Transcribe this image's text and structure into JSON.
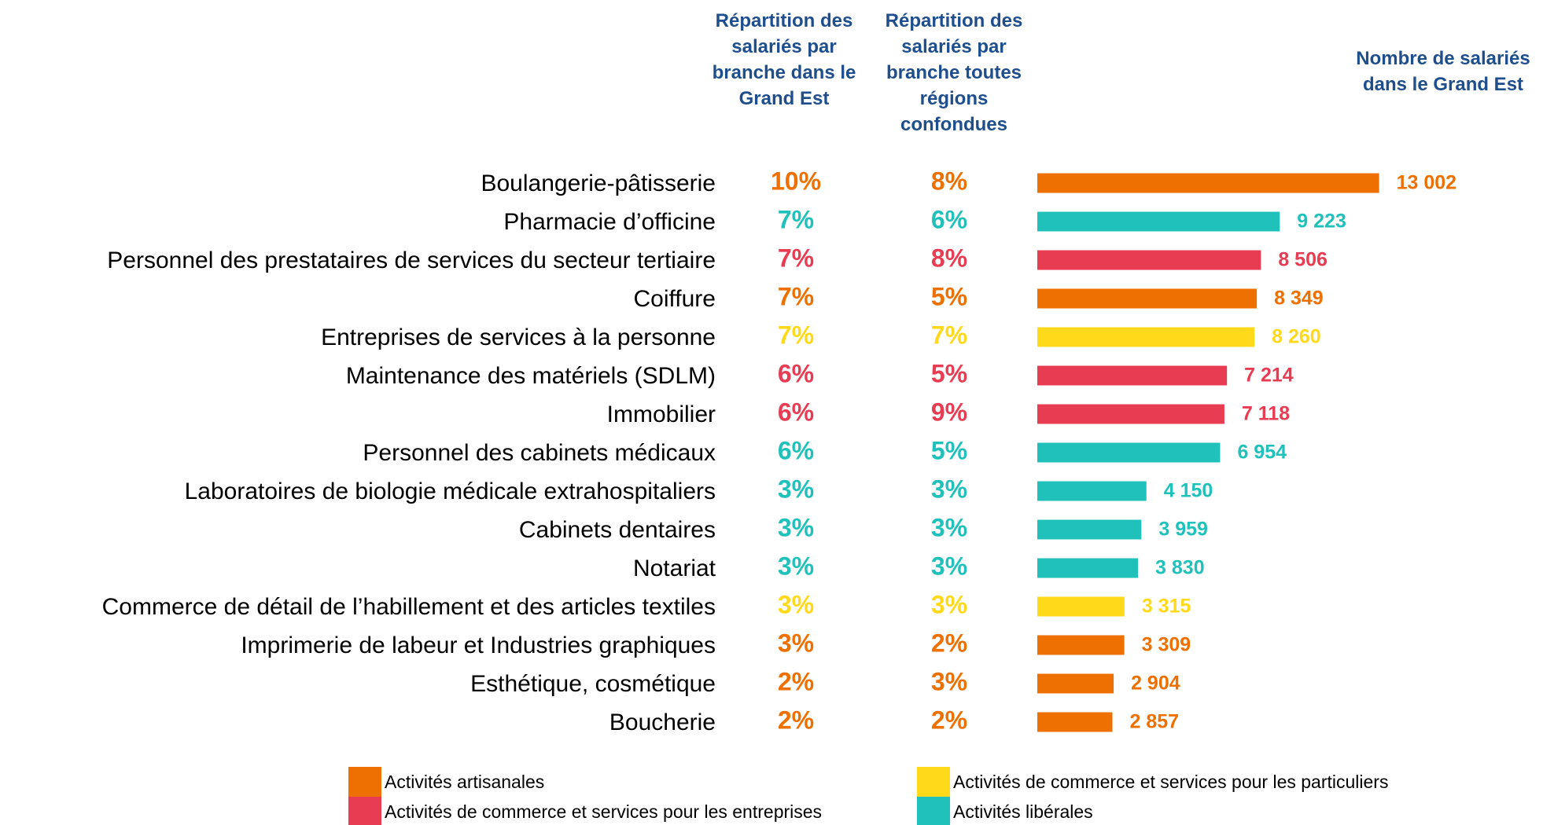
{
  "chart_data": {
    "type": "bar",
    "orientation": "horizontal",
    "columns": [
      {
        "title": "Répartition des salariés par branche dans le Grand Est",
        "values": [
          10,
          7,
          7,
          7,
          7,
          6,
          6,
          6,
          3,
          3,
          3,
          3,
          3,
          2,
          2
        ],
        "value_labels": [
          "10%",
          "7%",
          "7%",
          "7%",
          "7%",
          "6%",
          "6%",
          "6%",
          "3%",
          "3%",
          "3%",
          "3%",
          "3%",
          "2%",
          "2%"
        ]
      },
      {
        "title": "Répartition des salariés par branche toutes régions confondues",
        "values": [
          8,
          6,
          8,
          5,
          7,
          5,
          9,
          5,
          3,
          3,
          3,
          3,
          2,
          3,
          2
        ],
        "value_labels": [
          "8%",
          "6%",
          "8%",
          "5%",
          "7%",
          "5%",
          "9%",
          "5%",
          "3%",
          "3%",
          "3%",
          "3%",
          "2%",
          "3%",
          "2%"
        ]
      }
    ],
    "value_title": "Nombre de salariés dans le Grand Est",
    "categories": [
      "Boulangerie-pâtisserie",
      "Pharmacie d’officine",
      "Personnel des prestataires de services du secteur tertiaire",
      "Coiffure",
      "Entreprises de services à la personne",
      "Maintenance des matériels (SDLM)",
      "Immobilier",
      "Personnel des cabinets médicaux",
      "Laboratoires de biologie médicale extrahospitaliers",
      "Cabinets dentaires",
      "Notariat",
      "Commerce de détail de l’habillement et des articles textiles",
      "Imprimerie de labeur et Industries graphiques",
      "Esthétique, cosmétique",
      "Boucherie"
    ],
    "values": [
      13002,
      9223,
      8506,
      8349,
      8260,
      7214,
      7118,
      6954,
      4150,
      3959,
      3830,
      3315,
      3309,
      2904,
      2857
    ],
    "value_labels": [
      "13 002",
      "9 223",
      "8 506",
      "8 349",
      "8 260",
      "7 214",
      "7 118",
      "6 954",
      "4 150",
      "3 959",
      "3 830",
      "3 315",
      "3 309",
      "2 904",
      "2 857"
    ],
    "colors": [
      "#ED7000",
      "#20C1BA",
      "#E83C53",
      "#ED7000",
      "#FFD91A",
      "#E83C53",
      "#E83C53",
      "#20C1BA",
      "#20C1BA",
      "#20C1BA",
      "#20C1BA",
      "#FFD91A",
      "#ED7000",
      "#ED7000",
      "#ED7000"
    ],
    "xlim": [
      0,
      14000
    ],
    "legend": [
      {
        "name": "Activités artisanales",
        "color": "#ED7000"
      },
      {
        "name": "Activités de commerce et services pour les particuliers",
        "color": "#FFD91A"
      },
      {
        "name": "Activités de commerce et services pour les entreprises",
        "color": "#E83C53"
      },
      {
        "name": "Activités libérales",
        "color": "#20C1BA"
      }
    ]
  }
}
